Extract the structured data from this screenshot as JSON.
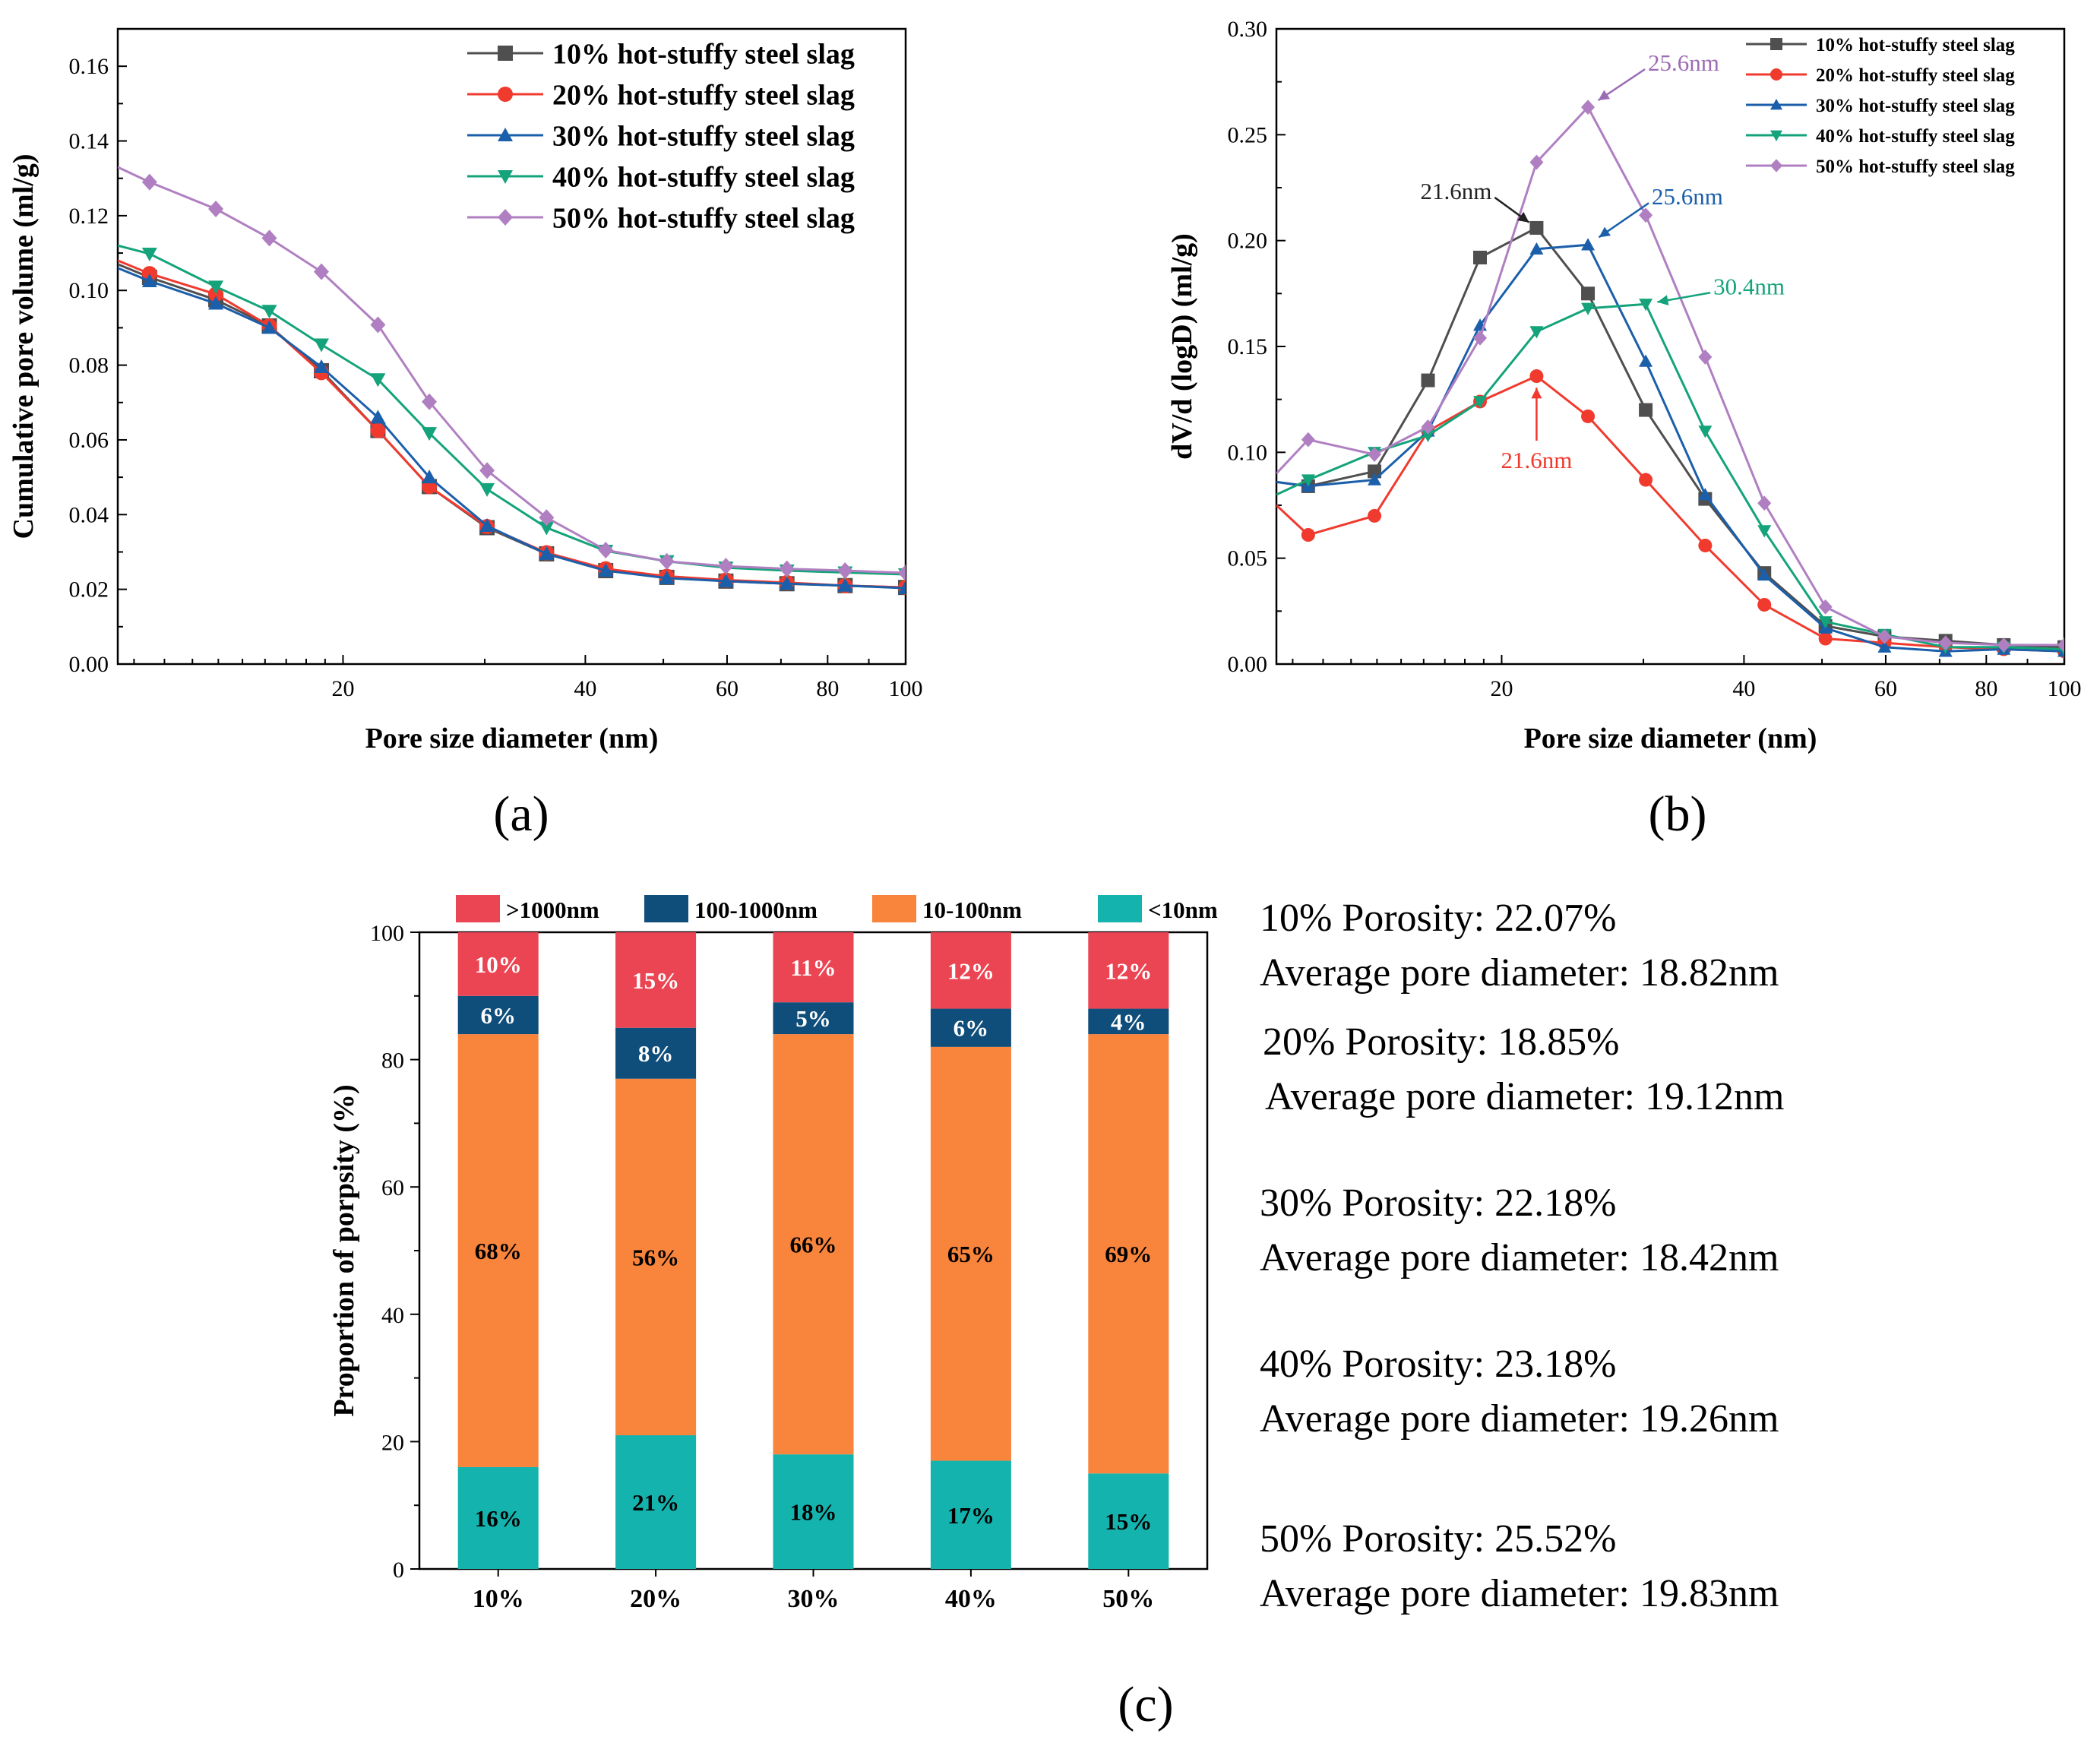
{
  "chart_data": [
    {
      "panel": "(a)",
      "type": "line",
      "xlabel": "Pore size diameter (nm)",
      "ylabel": "Cumulative pore volume (ml/g)",
      "xscale": "log",
      "xlim": [
        10.5,
        100
      ],
      "ylim": [
        0,
        0.17
      ],
      "xticks": [
        20,
        40,
        60,
        80,
        100
      ],
      "yticks": [
        "0.00",
        "0.02",
        "0.04",
        "0.06",
        "0.08",
        "0.10",
        "0.12",
        "0.14",
        "0.16"
      ],
      "legend_position": "top-right",
      "x": [
        11.5,
        13.9,
        16.2,
        18.8,
        22.1,
        25.6,
        30.2,
        35.8,
        42.4,
        50.5,
        59.8,
        71.2,
        84.1,
        100
      ],
      "series": [
        {
          "name": "10% hot-stuffy steel slag",
          "color": "#4f4f4f",
          "marker": "square",
          "line_start": 0.107,
          "values": [
            0.1035,
            0.0975,
            0.0905,
            0.0785,
            0.0625,
            0.0475,
            0.0365,
            0.0295,
            0.025,
            0.0232,
            0.0222,
            0.0215,
            0.021,
            0.0205
          ]
        },
        {
          "name": "20% hot-stuffy steel slag",
          "color": "#f03a2e",
          "marker": "circle",
          "line_start": 0.108,
          "values": [
            0.1045,
            0.099,
            0.0905,
            0.078,
            0.0625,
            0.0475,
            0.0368,
            0.0298,
            0.0255,
            0.0235,
            0.0225,
            0.0218,
            0.021,
            0.0205
          ]
        },
        {
          "name": "30% hot-stuffy steel slag",
          "color": "#1b5fab",
          "marker": "triangle",
          "line_start": 0.106,
          "values": [
            0.1025,
            0.0965,
            0.09,
            0.0795,
            0.066,
            0.05,
            0.037,
            0.0295,
            0.025,
            0.023,
            0.0222,
            0.0215,
            0.021,
            0.0203
          ]
        },
        {
          "name": "40% hot-stuffy steel slag",
          "color": "#14a37a",
          "marker": "triangle-down",
          "line_start": 0.112,
          "values": [
            0.1098,
            0.101,
            0.0945,
            0.0855,
            0.0762,
            0.0618,
            0.0468,
            0.0365,
            0.0303,
            0.0275,
            0.0258,
            0.025,
            0.0245,
            0.024
          ]
        },
        {
          "name": "50% hot-stuffy steel slag",
          "color": "#b07fc2",
          "marker": "diamond",
          "line_start": 0.133,
          "values": [
            0.129,
            0.1218,
            0.114,
            0.105,
            0.0908,
            0.0702,
            0.0518,
            0.0392,
            0.0305,
            0.0275,
            0.0262,
            0.0255,
            0.025,
            0.0244
          ]
        }
      ]
    },
    {
      "panel": "(b)",
      "type": "line",
      "xlabel": "Pore size diameter (nm)",
      "ylabel": "dV/d (logD) (ml/g)",
      "xscale": "log",
      "xlim": [
        10.5,
        100
      ],
      "ylim": [
        0,
        0.3
      ],
      "xticks": [
        20,
        40,
        60,
        80,
        100
      ],
      "yticks": [
        "0.00",
        "0.05",
        "0.10",
        "0.15",
        "0.20",
        "0.25",
        "0.30"
      ],
      "legend_position": "top-right",
      "x": [
        11.5,
        13.9,
        16.2,
        18.8,
        22.1,
        25.6,
        30.2,
        35.8,
        42.4,
        50.5,
        59.8,
        71.2,
        84.1,
        100
      ],
      "series": [
        {
          "name": "10% hot-stuffy steel slag",
          "color": "#4f4f4f",
          "marker": "square",
          "line_start": 0.086,
          "values": [
            0.084,
            0.091,
            0.134,
            0.192,
            0.206,
            0.175,
            0.12,
            0.078,
            0.043,
            0.018,
            0.013,
            0.011,
            0.009,
            0.008
          ]
        },
        {
          "name": "20% hot-stuffy steel slag",
          "color": "#f03a2e",
          "marker": "circle",
          "line_start": 0.075,
          "values": [
            0.061,
            0.07,
            0.11,
            0.124,
            0.136,
            0.117,
            0.087,
            0.056,
            0.028,
            0.012,
            0.01,
            0.008,
            0.007,
            0.006
          ]
        },
        {
          "name": "30% hot-stuffy steel slag",
          "color": "#1b5fab",
          "marker": "triangle",
          "line_start": 0.086,
          "values": [
            0.084,
            0.087,
            0.11,
            0.16,
            0.196,
            0.198,
            0.143,
            0.08,
            0.042,
            0.017,
            0.008,
            0.006,
            0.007,
            0.006
          ]
        },
        {
          "name": "40% hot-stuffy steel slag",
          "color": "#14a37a",
          "marker": "triangle-down",
          "line_start": 0.08,
          "values": [
            0.087,
            0.1,
            0.108,
            0.124,
            0.157,
            0.168,
            0.17,
            0.11,
            0.063,
            0.02,
            0.014,
            0.008,
            0.008,
            0.007
          ]
        },
        {
          "name": "50% hot-stuffy steel slag",
          "color": "#b07fc2",
          "marker": "diamond",
          "line_start": 0.09,
          "values": [
            0.106,
            0.099,
            0.112,
            0.154,
            0.237,
            0.263,
            0.212,
            0.145,
            0.076,
            0.027,
            0.013,
            0.01,
            0.009,
            0.009
          ]
        }
      ],
      "annotations": [
        {
          "text": "25.6nm",
          "color": "#9b6bb5",
          "x": 25.6,
          "y": 0.263
        },
        {
          "text": "21.6nm",
          "color": "#222222",
          "x": 22.1,
          "y": 0.206
        },
        {
          "text": "25.6nm",
          "color": "#1b5fab",
          "x": 25.6,
          "y": 0.198
        },
        {
          "text": "30.4nm",
          "color": "#14a37a",
          "x": 30.2,
          "y": 0.17
        },
        {
          "text": "21.6nm",
          "color": "#f03a2e",
          "x": 22.1,
          "y": 0.136
        }
      ]
    },
    {
      "panel": "(c)",
      "type": "bar",
      "stacked": true,
      "ylabel": "Proportion of porpsity (%)",
      "xlabel": "",
      "ylim": [
        0,
        100
      ],
      "yticks": [
        "0",
        "20",
        "40",
        "60",
        "80",
        "100"
      ],
      "legend_position": "top",
      "categories": [
        "10%",
        "20%",
        "30%",
        "40%",
        "50%"
      ],
      "series": [
        {
          "name": "<10nm",
          "color": "#14b3ad",
          "label_color": "#000000",
          "values": [
            16,
            21,
            18,
            17,
            15
          ],
          "labels": [
            "16%",
            "21%",
            "18%",
            "17%",
            "15%"
          ]
        },
        {
          "name": "10-100nm",
          "color": "#f9843c",
          "label_color": "#000000",
          "values": [
            68,
            56,
            66,
            65,
            69
          ],
          "labels": [
            "68%",
            "56%",
            "66%",
            "65%",
            "69%"
          ]
        },
        {
          "name": "100-1000nm",
          "color": "#0f4d7a",
          "label_color": "#ffffff",
          "values": [
            6,
            8,
            5,
            6,
            4
          ],
          "labels": [
            "6%",
            "8%",
            "5%",
            "6%",
            "4%"
          ]
        },
        {
          "name": ">1000nm",
          "color": "#eb4553",
          "label_color": "#ffffff",
          "values": [
            10,
            15,
            11,
            12,
            12
          ],
          "labels": [
            "10%",
            "15%",
            "11%",
            "12%",
            "12%"
          ]
        }
      ],
      "legend_order": [
        ">1000nm",
        "100-1000nm",
        "10-100nm",
        "<10nm"
      ],
      "notes": [
        {
          "porosity": "10% Porosity: 22.07%",
          "diameter": "Average pore diameter:  18.82nm"
        },
        {
          "porosity": "20% Porosity: 18.85%",
          "diameter": "Average pore diameter: 19.12nm"
        },
        {
          "porosity": "30% Porosity: 22.18%",
          "diameter": "Average pore diameter: 18.42nm"
        },
        {
          "porosity": "40% Porosity: 23.18%",
          "diameter": "Average pore diameter: 19.26nm"
        },
        {
          "porosity": "50% Porosity: 25.52%",
          "diameter": "Average pore diameter: 19.83nm"
        }
      ]
    }
  ]
}
